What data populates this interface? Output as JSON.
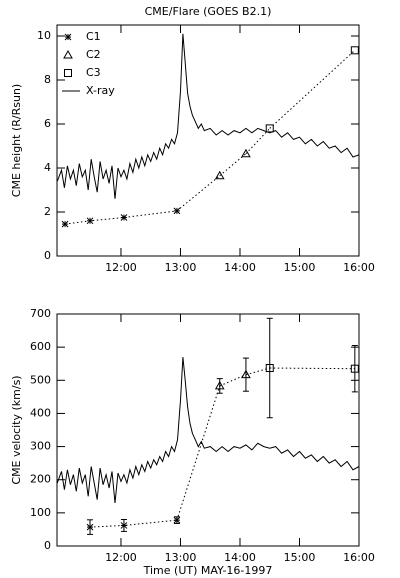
{
  "chart_data": [
    {
      "type": "line",
      "title": "CME/Flare (GOES B2.1)",
      "ylabel": "CME height (R/Rsun)",
      "xlim": [
        10.925,
        16.0
      ],
      "ylim": [
        0,
        10.5
      ],
      "xticks": [
        {
          "value": 12,
          "label": "12:00"
        },
        {
          "value": 13,
          "label": "13:00"
        },
        {
          "value": 14,
          "label": "14:00"
        },
        {
          "value": 15,
          "label": "15:00"
        },
        {
          "value": 16,
          "label": "16:00"
        }
      ],
      "yticks": [
        0,
        2,
        4,
        6,
        8,
        10
      ],
      "legend": "upper left",
      "connect_markers": true,
      "series": [
        {
          "name": "C1",
          "marker": "asterisk",
          "color": "#000000",
          "x": [
            11.06,
            11.48,
            12.05,
            12.94
          ],
          "values": [
            1.45,
            1.6,
            1.75,
            2.05
          ]
        },
        {
          "name": "C2",
          "marker": "triangle",
          "color": "#000000",
          "x": [
            13.66,
            14.1
          ],
          "values": [
            3.65,
            4.65
          ]
        },
        {
          "name": "C3",
          "marker": "square",
          "color": "#000000",
          "x": [
            14.5,
            15.93
          ],
          "values": [
            5.8,
            9.35
          ]
        },
        {
          "name": "X-ray",
          "marker": "none",
          "color": "#000000",
          "x": [
            10.93,
            11.0,
            11.05,
            11.1,
            11.15,
            11.2,
            11.25,
            11.3,
            11.35,
            11.4,
            11.45,
            11.5,
            11.55,
            11.6,
            11.65,
            11.7,
            11.75,
            11.8,
            11.85,
            11.9,
            11.95,
            12.0,
            12.05,
            12.1,
            12.15,
            12.2,
            12.25,
            12.3,
            12.35,
            12.4,
            12.45,
            12.5,
            12.55,
            12.6,
            12.65,
            12.7,
            12.75,
            12.8,
            12.85,
            12.9,
            12.95,
            13.0,
            13.04,
            13.08,
            13.12,
            13.16,
            13.2,
            13.25,
            13.3,
            13.35,
            13.4,
            13.5,
            13.6,
            13.7,
            13.8,
            13.9,
            14.0,
            14.1,
            14.2,
            14.3,
            14.4,
            14.5,
            14.6,
            14.7,
            14.8,
            14.9,
            15.0,
            15.1,
            15.2,
            15.3,
            15.4,
            15.5,
            15.6,
            15.7,
            15.8,
            15.9,
            16.0
          ],
          "values": [
            3.4,
            3.9,
            3.1,
            4.1,
            3.5,
            3.9,
            3.2,
            4.2,
            3.6,
            3.9,
            3.0,
            4.4,
            3.6,
            2.9,
            4.3,
            3.5,
            3.9,
            3.3,
            4.1,
            2.6,
            4.0,
            3.6,
            3.9,
            3.5,
            4.2,
            3.8,
            4.4,
            4.0,
            4.5,
            4.1,
            4.6,
            4.3,
            4.7,
            4.4,
            4.9,
            4.6,
            5.1,
            4.9,
            5.3,
            5.1,
            5.6,
            7.5,
            10.1,
            8.8,
            7.4,
            6.8,
            6.4,
            6.1,
            5.8,
            6.0,
            5.7,
            5.8,
            5.5,
            5.7,
            5.5,
            5.7,
            5.6,
            5.8,
            5.6,
            5.8,
            5.7,
            5.6,
            5.7,
            5.4,
            5.6,
            5.3,
            5.4,
            5.1,
            5.3,
            5.0,
            5.2,
            4.9,
            5.0,
            4.7,
            4.9,
            4.5,
            4.6
          ]
        }
      ]
    },
    {
      "type": "line",
      "ylabel": "CME velocity (km/s)",
      "xlabel": "Time (UT) MAY-16-1997",
      "xlim": [
        10.925,
        16.0
      ],
      "ylim": [
        0,
        700
      ],
      "xticks": [
        {
          "value": 12,
          "label": "12:00"
        },
        {
          "value": 13,
          "label": "13:00"
        },
        {
          "value": 14,
          "label": "14:00"
        },
        {
          "value": 15,
          "label": "15:00"
        },
        {
          "value": 16,
          "label": "16:00"
        }
      ],
      "yticks": [
        0,
        100,
        200,
        300,
        400,
        500,
        600,
        700
      ],
      "connect_markers": true,
      "series": [
        {
          "marker": "asterisk",
          "color": "#000000",
          "x": [
            11.48,
            12.05,
            12.94
          ],
          "values": [
            57,
            62,
            78
          ],
          "errors": [
            22,
            18,
            10
          ]
        },
        {
          "marker": "triangle",
          "color": "#000000",
          "x": [
            13.66,
            14.1
          ],
          "values": [
            483,
            517
          ],
          "errors": [
            22,
            50
          ]
        },
        {
          "marker": "square",
          "color": "#000000",
          "x": [
            14.5,
            15.93
          ],
          "values": [
            537,
            535
          ],
          "errors": [
            150,
            70
          ]
        },
        {
          "marker": "none",
          "color": "#000000",
          "x": [
            10.93,
            11.0,
            11.05,
            11.1,
            11.15,
            11.2,
            11.25,
            11.3,
            11.35,
            11.4,
            11.45,
            11.5,
            11.55,
            11.6,
            11.65,
            11.7,
            11.75,
            11.8,
            11.85,
            11.9,
            11.95,
            12.0,
            12.05,
            12.1,
            12.15,
            12.2,
            12.25,
            12.3,
            12.35,
            12.4,
            12.45,
            12.5,
            12.55,
            12.6,
            12.65,
            12.7,
            12.75,
            12.8,
            12.85,
            12.9,
            12.95,
            13.0,
            13.04,
            13.08,
            13.12,
            13.16,
            13.2,
            13.25,
            13.3,
            13.35,
            13.4,
            13.5,
            13.6,
            13.7,
            13.8,
            13.9,
            14.0,
            14.1,
            14.2,
            14.3,
            14.4,
            14.5,
            14.6,
            14.7,
            14.8,
            14.9,
            15.0,
            15.1,
            15.2,
            15.3,
            15.4,
            15.5,
            15.6,
            15.7,
            15.8,
            15.9,
            16.0
          ],
          "values": [
            190,
            225,
            170,
            230,
            185,
            215,
            165,
            235,
            190,
            215,
            150,
            240,
            190,
            140,
            235,
            185,
            215,
            175,
            225,
            130,
            220,
            195,
            215,
            190,
            230,
            205,
            240,
            215,
            245,
            225,
            255,
            235,
            260,
            245,
            270,
            255,
            285,
            270,
            300,
            285,
            320,
            440,
            570,
            500,
            420,
            370,
            340,
            320,
            300,
            315,
            295,
            300,
            285,
            300,
            285,
            300,
            295,
            305,
            290,
            310,
            300,
            295,
            300,
            280,
            290,
            270,
            285,
            265,
            275,
            255,
            270,
            250,
            260,
            240,
            255,
            230,
            240
          ]
        }
      ]
    }
  ]
}
